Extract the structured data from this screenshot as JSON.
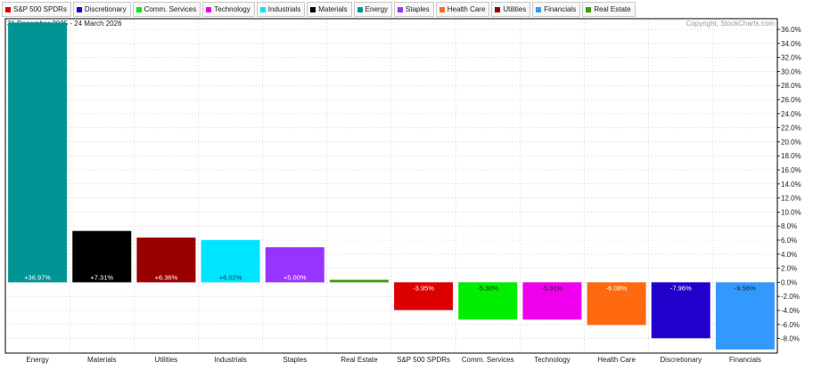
{
  "legend": [
    {
      "label": "S&P 500 SPDRs",
      "color": "#dd0000"
    },
    {
      "label": "Discretionary",
      "color": "#2200cc"
    },
    {
      "label": "Comm. Services",
      "color": "#00ee00"
    },
    {
      "label": "Technology",
      "color": "#ee00ee"
    },
    {
      "label": "Industrials",
      "color": "#00e5ff"
    },
    {
      "label": "Materials",
      "color": "#000000"
    },
    {
      "label": "Energy",
      "color": "#009494"
    },
    {
      "label": "Staples",
      "color": "#9933ff"
    },
    {
      "label": "Health Care",
      "color": "#ff6a10"
    },
    {
      "label": "Utilities",
      "color": "#990000"
    },
    {
      "label": "Financials",
      "color": "#3399ff"
    },
    {
      "label": "Real Estate",
      "color": "#449911"
    }
  ],
  "header": {
    "date_range": "31 December 2025 - 24 March 2026",
    "copyright": "Copyright, StockCharts.com"
  },
  "chart_data": {
    "type": "bar",
    "categories": [
      "Energy",
      "Materials",
      "Utilities",
      "Industrials",
      "Staples",
      "Real Estate",
      "S&P 500 SPDRs",
      "Comm. Services",
      "Technology",
      "Health Care",
      "Discretionary",
      "Financials"
    ],
    "values": [
      36.97,
      7.31,
      6.36,
      6.02,
      5.0,
      0.36,
      -3.95,
      -5.3,
      -5.31,
      -6.08,
      -7.96,
      -9.56
    ],
    "labels": [
      "+36.97%",
      "+7.31%",
      "+6.36%",
      "+6.02%",
      "+5.00%",
      "",
      "-3.95%",
      "-5.30%",
      "-5.31%",
      "-6.08%",
      "-7.96%",
      "-9.56%"
    ],
    "colors": [
      "#009494",
      "#000000",
      "#990000",
      "#00e5ff",
      "#9933ff",
      "#449911",
      "#dd0000",
      "#00ee00",
      "#ee00ee",
      "#ff6a10",
      "#2200cc",
      "#3399ff"
    ],
    "label_colors": [
      "#ffffff",
      "#ffffff",
      "#ffffff",
      "#333333",
      "#ffffff",
      "#333333",
      "#ffffff",
      "#222222",
      "#222222",
      "#ffffff",
      "#ffffff",
      "#222222"
    ],
    "yticks": [
      "36.0%",
      "34.0%",
      "32.0%",
      "30.0%",
      "28.0%",
      "26.0%",
      "24.0%",
      "22.0%",
      "20.0%",
      "18.0%",
      "16.0%",
      "14.0%",
      "12.0%",
      "10.0%",
      "8.0%",
      "6.0%",
      "4.0%",
      "2.0%",
      "0.0%",
      "-2.0%",
      "-4.0%",
      "-6.0%",
      "-8.0%"
    ],
    "ylim": [
      -10,
      36.97
    ],
    "grid": true,
    "legend_position": "top"
  }
}
